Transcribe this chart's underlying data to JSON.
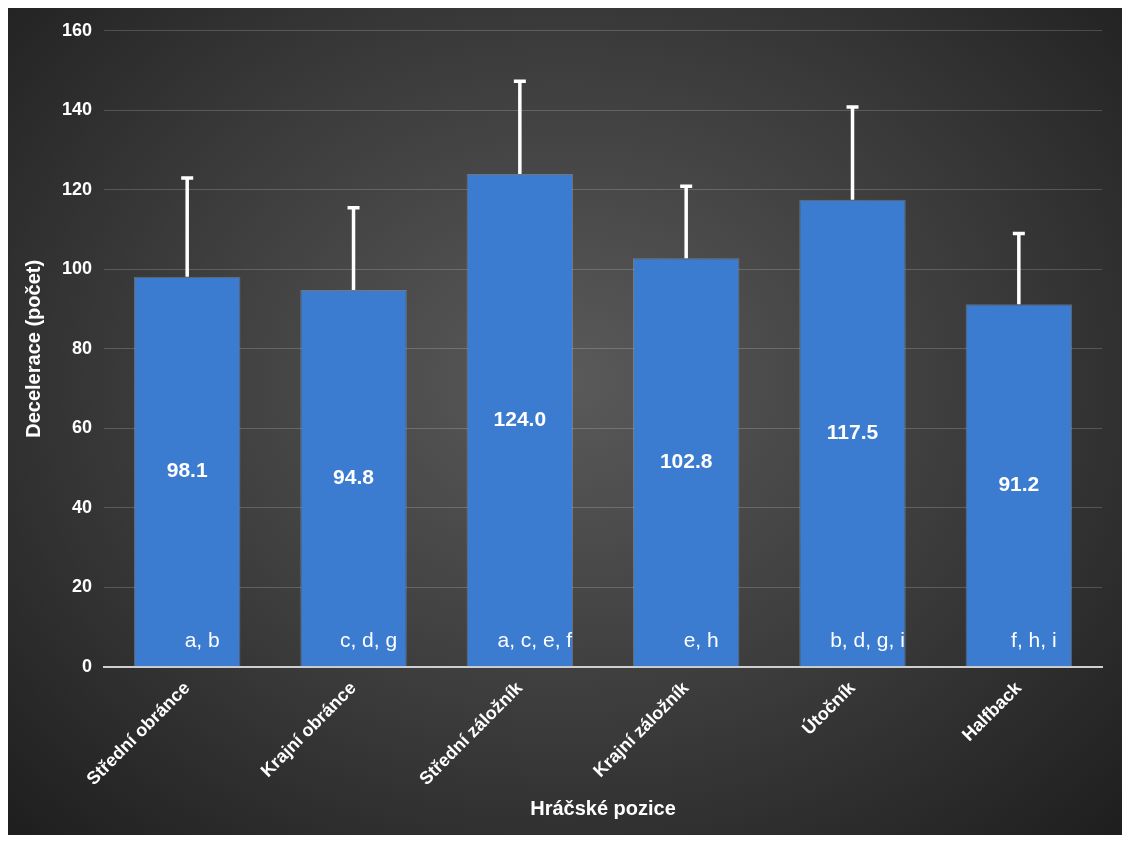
{
  "chart_data": {
    "type": "bar",
    "xlabel": "Hráčské pozice",
    "ylabel": "Decelerace (počet)",
    "categories": [
      "Střední obránce",
      "Krajní obránce",
      "Střední záložník",
      "Krajní záložník",
      "Útočník",
      "Halfback"
    ],
    "values": [
      98.1,
      94.8,
      124.0,
      102.8,
      117.5,
      91.2
    ],
    "value_labels": [
      "98.1",
      "94.8",
      "124.0",
      "102.8",
      "117.5",
      "91.2"
    ],
    "errors": [
      [
        98.1,
        123
      ],
      [
        94.8,
        115.5
      ],
      [
        124.0,
        147.3
      ],
      [
        102.8,
        120.9
      ],
      [
        117.5,
        140.8
      ],
      [
        91.2,
        109
      ]
    ],
    "color": "#3b7bd0",
    "ylim": [
      0,
      160
    ],
    "yticks": [
      0,
      20,
      40,
      60,
      80,
      100,
      120,
      140,
      160
    ],
    "grid": "y",
    "annotations": [
      "a, b",
      "c, d, g",
      "a, c, e, f",
      "e, h",
      "b, d, g, i",
      "f, h, i"
    ]
  }
}
